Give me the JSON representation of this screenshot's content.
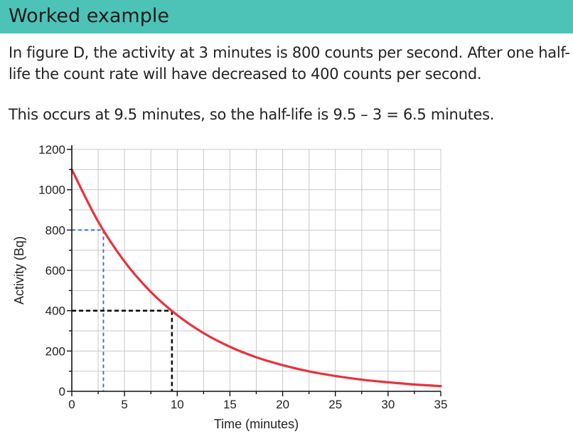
{
  "header": {
    "title": "Worked example",
    "background": "#4dc3b8"
  },
  "body": {
    "paragraph1": "In figure D, the activity at 3 minutes is 800 counts per second. After one half-life the count rate will have decreased to 400 counts per second.",
    "paragraph2": "This occurs at 9.5 minutes, so the half-life is 9.5 – 3 = 6.5 minutes."
  },
  "chart_data": {
    "type": "line",
    "xlabel": "Time (minutes)",
    "ylabel": "Activity (Bq)",
    "xlim": [
      0,
      35
    ],
    "ylim": [
      0,
      1200
    ],
    "xticks": [
      0,
      5,
      10,
      15,
      20,
      25,
      30,
      35
    ],
    "yticks": [
      0,
      200,
      400,
      600,
      800,
      1000,
      1200
    ],
    "grid": true,
    "series": [
      {
        "color": "#e8323c",
        "x": [
          0,
          2.5,
          5,
          7.5,
          10,
          12.5,
          15,
          17.5,
          20,
          22.5,
          25,
          27.5,
          30,
          32.5,
          35
        ],
        "y": [
          1100,
          842,
          644,
          493,
          378,
          289,
          221,
          169,
          130,
          99,
          76,
          58,
          45,
          34,
          26
        ]
      }
    ],
    "guides": [
      {
        "x": 3,
        "y": 800,
        "color": "#2b6fd6"
      },
      {
        "x": 9.5,
        "y": 400,
        "color": "#111111"
      }
    ]
  }
}
